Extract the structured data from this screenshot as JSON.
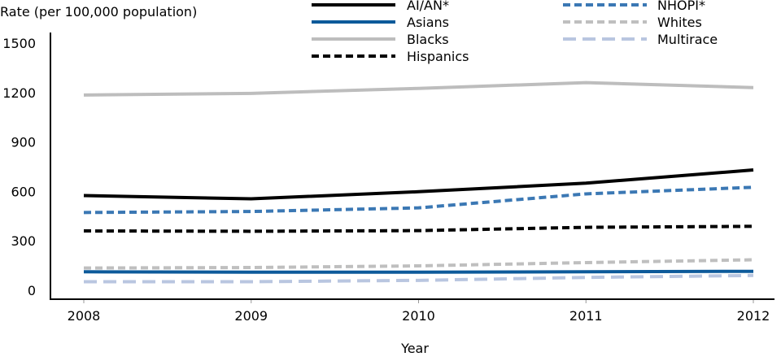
{
  "chart_data": {
    "type": "line",
    "title": "",
    "xlabel": "Year",
    "ylabel": "Rate (per 100,000 population)",
    "categories": [
      "2008",
      "2009",
      "2010",
      "2011",
      "2012"
    ],
    "y_ticks": [
      "0",
      "300",
      "600",
      "900",
      "1200",
      "1500"
    ],
    "ylim": [
      0,
      1500
    ],
    "grid": false,
    "legend_placement": "top",
    "series": [
      {
        "name": "AI/AN*",
        "color": "#000000",
        "dash": "solid",
        "values": [
          575,
          555,
          598,
          650,
          730
        ]
      },
      {
        "name": "Asians",
        "color": "#0d5a9a",
        "dash": "solid",
        "values": [
          112,
          110,
          110,
          112,
          115
        ]
      },
      {
        "name": "Blacks",
        "color": "#bdbdbd",
        "dash": "solid",
        "values": [
          1185,
          1195,
          1225,
          1260,
          1230
        ]
      },
      {
        "name": "Hispanics",
        "color": "#000000",
        "dash": "dash",
        "values": [
          360,
          358,
          362,
          382,
          388
        ]
      },
      {
        "name": "NHOPI*",
        "color": "#3b78b4",
        "dash": "dash",
        "values": [
          472,
          478,
          500,
          585,
          625
        ]
      },
      {
        "name": "Whites",
        "color": "#bfbfbf",
        "dash": "dash",
        "values": [
          135,
          138,
          148,
          168,
          185
        ]
      },
      {
        "name": "Multirace",
        "color": "#b9c6e0",
        "dash": "longdash",
        "values": [
          52,
          52,
          60,
          78,
          90
        ]
      }
    ]
  }
}
